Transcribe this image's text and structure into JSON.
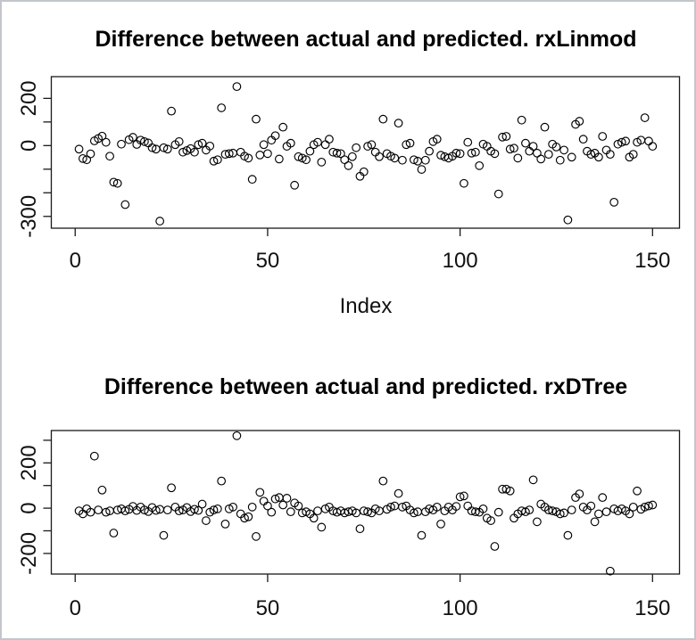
{
  "window": {
    "background": "#ffffff",
    "border_color": "#c2c6ca",
    "foreground": "#000000"
  },
  "chart_data": [
    {
      "type": "scatter",
      "title": "Difference between actual and predicted. rxLinmod",
      "xlabel": "Index",
      "ylabel": "",
      "marker": "open-circle",
      "marker_color": "#000000",
      "grid": false,
      "legend": "none",
      "x_start_index": 1,
      "xlim": [
        -6.2,
        157
      ],
      "ylim": [
        -350,
        292
      ],
      "x_ticks": [
        0,
        50,
        100,
        150
      ],
      "x_tick_labels": [
        "0",
        "50",
        "100",
        "150"
      ],
      "y_ticks": [
        200,
        100,
        0,
        -100,
        -200,
        -300
      ],
      "y_tick_labels": [
        "200",
        "",
        "0",
        "",
        "",
        "-300"
      ],
      "values": [
        -15,
        -55,
        -60,
        -35,
        20,
        30,
        40,
        14,
        -45,
        -155,
        -160,
        6,
        -250,
        25,
        35,
        5,
        23,
        17,
        11,
        -9,
        -15,
        -320,
        -9,
        -15,
        146,
        4,
        17,
        -28,
        -21,
        -13,
        -28,
        4,
        10,
        -19,
        -2,
        -66,
        -60,
        160,
        -37,
        -34,
        -32,
        250,
        -28,
        -45,
        -53,
        -143,
        112,
        -40,
        4,
        -34,
        23,
        42,
        -57,
        78,
        -3,
        10,
        -168,
        -47,
        -53,
        -60,
        -24,
        4,
        14,
        -70,
        4,
        27,
        -28,
        -32,
        -34,
        -60,
        -85,
        -47,
        -9,
        -130,
        -111,
        -3,
        4,
        -28,
        -47,
        112,
        -34,
        -45,
        -53,
        95,
        -62,
        4,
        10,
        -60,
        -66,
        -101,
        -62,
        -24,
        17,
        27,
        -41,
        -47,
        -53,
        -45,
        -32,
        -34,
        -160,
        14,
        -32,
        -28,
        -85,
        6,
        -3,
        -24,
        -34,
        -205,
        36,
        39,
        -15,
        -11,
        -53,
        108,
        10,
        -24,
        -3,
        -32,
        -57,
        78,
        -37,
        6,
        -6,
        -62,
        -19,
        -315,
        -49,
        90,
        103,
        27,
        -24,
        -37,
        -32,
        -49,
        39,
        -19,
        -37,
        -240,
        6,
        14,
        19,
        -49,
        -37,
        14,
        23,
        118,
        19,
        -3
      ]
    },
    {
      "type": "scatter",
      "title": "Difference between actual and predicted. rxDTree",
      "xlabel": "",
      "ylabel": "",
      "marker": "open-circle",
      "marker_color": "#000000",
      "grid": false,
      "legend": "none",
      "x_start_index": 1,
      "xlim": [
        -6.2,
        157
      ],
      "ylim": [
        -291,
        343
      ],
      "x_ticks": [
        0,
        50,
        100,
        150
      ],
      "x_tick_labels": [
        "0",
        "50",
        "100",
        "150"
      ],
      "y_ticks": [
        300,
        200,
        100,
        0,
        -100,
        -200
      ],
      "y_tick_labels": [
        "",
        "200",
        "",
        "0",
        "",
        "-200"
      ],
      "values": [
        -12,
        -25,
        -3,
        -18,
        230,
        -8,
        80,
        -18,
        -12,
        -110,
        -8,
        -3,
        -12,
        -5,
        8,
        -10,
        5,
        -8,
        -15,
        3,
        -10,
        -5,
        -120,
        -8,
        90,
        5,
        -12,
        -8,
        3,
        -15,
        -5,
        -10,
        18,
        -55,
        -18,
        -8,
        -3,
        120,
        -70,
        -3,
        5,
        320,
        -25,
        -44,
        -38,
        5,
        -125,
        70,
        31,
        10,
        -18,
        41,
        47,
        14,
        44,
        -16,
        23,
        10,
        -21,
        -16,
        -25,
        -44,
        -12,
        -84,
        -3,
        5,
        -12,
        -18,
        -12,
        -21,
        -16,
        -12,
        -21,
        -91,
        -12,
        -16,
        -21,
        -3,
        -12,
        120,
        -5,
        5,
        10,
        65,
        5,
        10,
        -8,
        -21,
        -16,
        -120,
        -16,
        -3,
        -8,
        5,
        -70,
        -12,
        5,
        -8,
        8,
        50,
        54,
        10,
        -12,
        -16,
        -18,
        -3,
        -44,
        -55,
        -169,
        -18,
        84,
        84,
        76,
        -44,
        -25,
        -12,
        -16,
        -8,
        125,
        -60,
        18,
        5,
        -8,
        -12,
        -16,
        -25,
        -21,
        -120,
        -8,
        47,
        63,
        5,
        -8,
        10,
        -60,
        -25,
        47,
        -16,
        -278,
        -3,
        -12,
        -3,
        -12,
        -25,
        5,
        76,
        -5,
        5,
        10,
        14
      ]
    }
  ]
}
